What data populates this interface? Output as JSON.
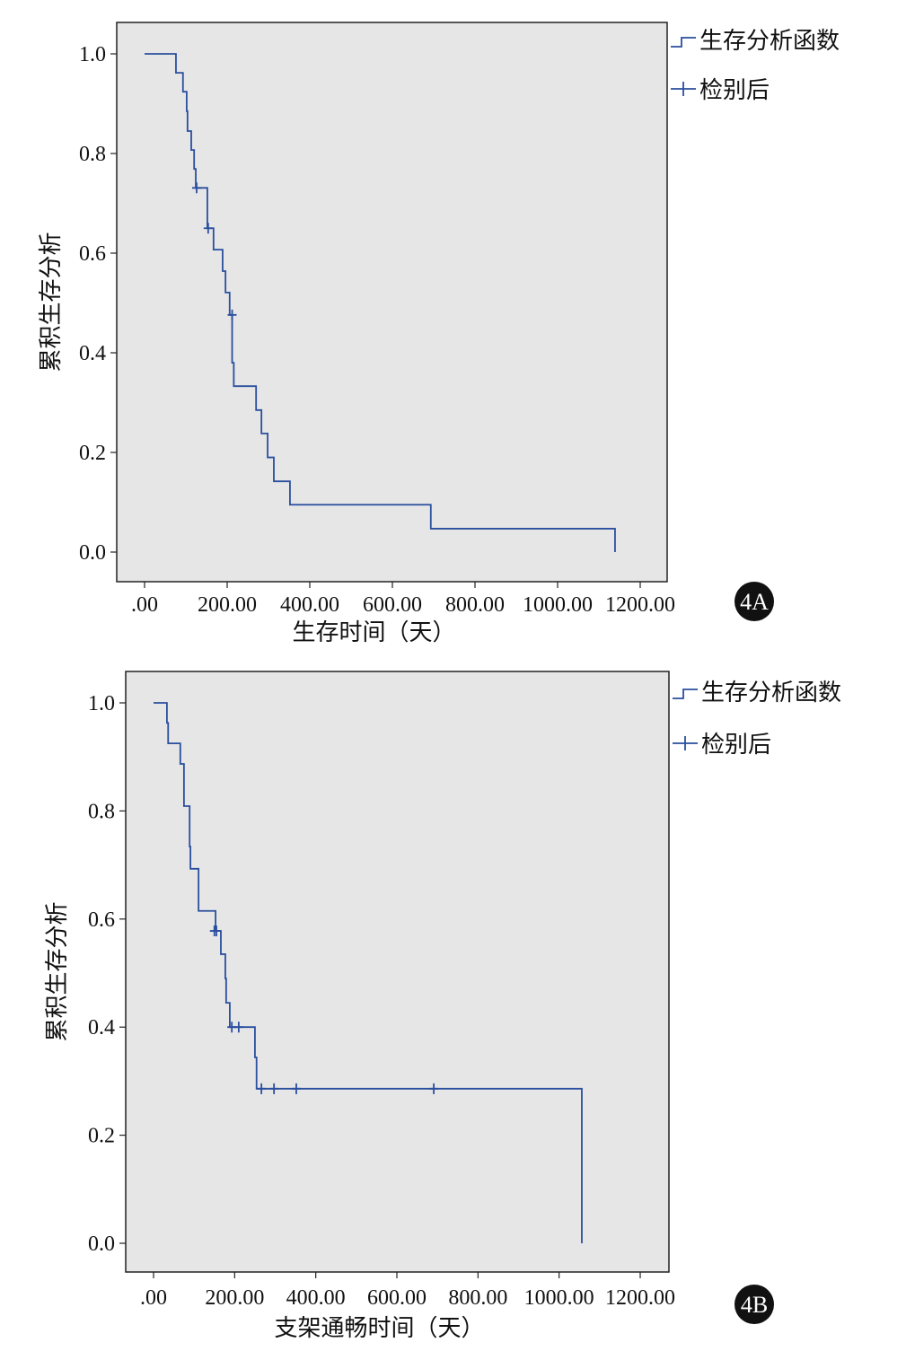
{
  "chart_data": [
    {
      "type": "line",
      "subtype": "kaplan-meier step",
      "panel_label": "4A",
      "xlabel": "生存时间（天）",
      "ylabel": "累积生存分析",
      "xlim": [
        0,
        1200
      ],
      "ylim": [
        0,
        1.0
      ],
      "xticks": [
        ".00",
        "200.00",
        "400.00",
        "600.00",
        "800.00",
        "1000.00",
        "1200.00"
      ],
      "xtick_values": [
        0,
        200,
        400,
        600,
        800,
        1000,
        1200
      ],
      "yticks": [
        "0.0",
        "0.2",
        "0.4",
        "0.6",
        "0.8",
        "1.0"
      ],
      "ytick_values": [
        0,
        0.2,
        0.4,
        0.6,
        0.8,
        1.0
      ],
      "legend": {
        "placement": "top-right outside",
        "survival": "生存分析函数",
        "censored": "检别后"
      },
      "steps": {
        "time": [
          0,
          76,
          93,
          102,
          104,
          113,
          120,
          124,
          152,
          167,
          189,
          196,
          206,
          212,
          216,
          270,
          283,
          298,
          313,
          352,
          693,
          1139
        ],
        "survival": [
          1.0,
          0.962,
          0.924,
          0.885,
          0.845,
          0.807,
          0.769,
          0.731,
          0.65,
          0.607,
          0.564,
          0.521,
          0.476,
          0.38,
          0.333,
          0.285,
          0.238,
          0.19,
          0.142,
          0.095,
          0.047,
          0.0
        ]
      },
      "censored": {
        "time": [
          126,
          154,
          212
        ],
        "survival": [
          0.731,
          0.65,
          0.476
        ]
      },
      "grid": false,
      "line_color": "#2a4f9e",
      "background": "#e6e6e6"
    },
    {
      "type": "line",
      "subtype": "kaplan-meier step",
      "panel_label": "4B",
      "xlabel": "支架通畅时间（天）",
      "ylabel": "累积生存分析",
      "xlim": [
        0,
        1200
      ],
      "ylim": [
        0,
        1.0
      ],
      "xticks": [
        ".00",
        "200.00",
        "400.00",
        "600.00",
        "800.00",
        "1000.00",
        "1200.00"
      ],
      "xtick_values": [
        0,
        200,
        400,
        600,
        800,
        1000,
        1200
      ],
      "yticks": [
        "0.0",
        "0.2",
        "0.4",
        "0.6",
        "0.8",
        "1.0"
      ],
      "ytick_values": [
        0,
        0.2,
        0.4,
        0.6,
        0.8,
        1.0
      ],
      "legend": {
        "placement": "top-right outside",
        "survival": "生存分析函数",
        "censored": "检别后"
      },
      "steps": {
        "time": [
          0,
          33,
          36,
          66,
          75,
          89,
          91,
          111,
          153,
          166,
          177,
          179,
          188,
          250,
          254,
          1056
        ],
        "survival": [
          1.0,
          0.963,
          0.925,
          0.887,
          0.809,
          0.734,
          0.693,
          0.615,
          0.578,
          0.535,
          0.49,
          0.445,
          0.4,
          0.344,
          0.286,
          0.0
        ]
      },
      "censored": {
        "time": [
          150,
          155,
          193,
          210,
          266,
          297,
          352,
          691
        ],
        "survival": [
          0.578,
          0.578,
          0.4,
          0.4,
          0.286,
          0.286,
          0.286,
          0.286
        ]
      },
      "grid": false,
      "line_color": "#2a4f9e",
      "background": "#e6e6e6"
    }
  ]
}
